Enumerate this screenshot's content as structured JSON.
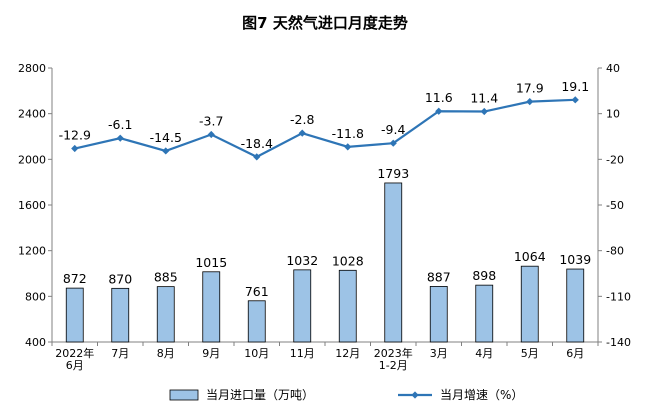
{
  "chart_data": {
    "type": "bar+line",
    "title": "图7  天然气进口月度走势",
    "categories": [
      [
        "2022年",
        "6月"
      ],
      [
        "7月"
      ],
      [
        "8月"
      ],
      [
        "9月"
      ],
      [
        "10月"
      ],
      [
        "11月"
      ],
      [
        "12月"
      ],
      [
        "2023年",
        "1-2月"
      ],
      [
        "3月"
      ],
      [
        "4月"
      ],
      [
        "5月"
      ],
      [
        "6月"
      ]
    ],
    "series": [
      {
        "name": "当月进口量（万吨）",
        "type": "bar",
        "axis": "left",
        "values": [
          872,
          870,
          885,
          1015,
          761,
          1032,
          1028,
          1793,
          887,
          898,
          1064,
          1039
        ],
        "labels": [
          "872",
          "870",
          "885",
          "1015",
          "761",
          "1032",
          "1028",
          "1793",
          "887",
          "898",
          "1064",
          "1039"
        ]
      },
      {
        "name": "当月增速（%）",
        "type": "line",
        "axis": "right",
        "values": [
          -12.9,
          -6.1,
          -14.5,
          -3.7,
          -18.4,
          -2.8,
          -11.8,
          -9.4,
          11.6,
          11.4,
          17.9,
          19.1
        ],
        "labels": [
          "-12.9",
          "-6.1",
          "-14.5",
          "-3.7",
          "-18.4",
          "-2.8",
          "-11.8",
          "-9.4",
          "11.6",
          "11.4",
          "17.9",
          "19.1"
        ]
      }
    ],
    "y_left": {
      "min": 400,
      "max": 2800,
      "ticks": [
        "400",
        "800",
        "1200",
        "1600",
        "2000",
        "2400",
        "2800"
      ]
    },
    "y_right": {
      "min": -140,
      "max": 40,
      "ticks": [
        "-140",
        "-110",
        "-80",
        "-50",
        "-20",
        "10",
        "40"
      ]
    },
    "grid": false,
    "legend_position": "bottom",
    "colors": {
      "bar_fill": "#9DC3E6",
      "bar_stroke": "#000000",
      "line": "#2E75B6",
      "axis": "#808080"
    }
  }
}
